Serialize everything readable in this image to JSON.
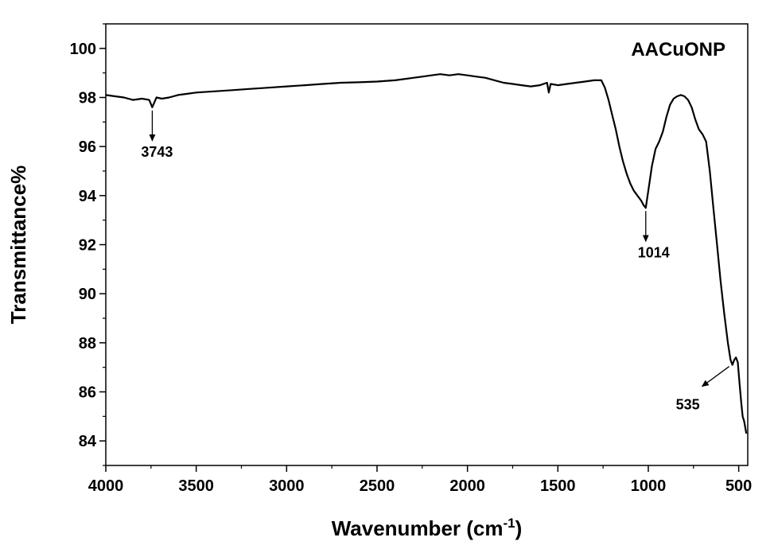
{
  "chart_data": {
    "type": "line",
    "title": "",
    "xlabel": "Wavenumber (cm",
    "xlabel_superscript": "-1",
    "xlabel_close": ")",
    "ylabel": "Transmittance%",
    "xlim": [
      4000,
      450
    ],
    "ylim": [
      83,
      101
    ],
    "x_reversed": true,
    "grid": false,
    "legend_position": "top-right",
    "x_ticks": [
      4000,
      3500,
      3000,
      2500,
      2000,
      1500,
      1000,
      500
    ],
    "y_ticks": [
      84,
      86,
      88,
      90,
      92,
      94,
      96,
      98,
      100
    ],
    "series": [
      {
        "name": "AACuONP",
        "color": "#000000",
        "x": [
          4000,
          3950,
          3900,
          3850,
          3800,
          3760,
          3743,
          3720,
          3690,
          3650,
          3600,
          3550,
          3500,
          3400,
          3300,
          3200,
          3100,
          3000,
          2900,
          2800,
          2700,
          2600,
          2500,
          2400,
          2300,
          2250,
          2200,
          2150,
          2100,
          2050,
          2000,
          1950,
          1900,
          1850,
          1800,
          1750,
          1700,
          1650,
          1600,
          1560,
          1550,
          1540,
          1500,
          1450,
          1400,
          1350,
          1300,
          1260,
          1240,
          1220,
          1200,
          1180,
          1160,
          1140,
          1120,
          1100,
          1080,
          1060,
          1040,
          1025,
          1014,
          1000,
          980,
          960,
          940,
          920,
          900,
          880,
          860,
          840,
          820,
          800,
          780,
          760,
          740,
          720,
          700,
          680,
          660,
          640,
          620,
          600,
          580,
          560,
          545,
          535,
          525,
          515,
          505,
          495,
          485,
          478,
          470,
          465,
          458
        ],
        "y": [
          98.1,
          98.05,
          98.0,
          97.9,
          97.95,
          97.9,
          97.6,
          98.0,
          97.95,
          98.0,
          98.1,
          98.15,
          98.2,
          98.25,
          98.3,
          98.35,
          98.4,
          98.45,
          98.5,
          98.55,
          98.6,
          98.62,
          98.65,
          98.7,
          98.8,
          98.85,
          98.9,
          98.95,
          98.9,
          98.95,
          98.9,
          98.85,
          98.8,
          98.7,
          98.6,
          98.55,
          98.5,
          98.45,
          98.5,
          98.6,
          98.2,
          98.55,
          98.5,
          98.55,
          98.6,
          98.65,
          98.7,
          98.7,
          98.4,
          97.9,
          97.3,
          96.7,
          96.0,
          95.4,
          94.9,
          94.5,
          94.2,
          94.0,
          93.8,
          93.6,
          93.5,
          94.2,
          95.2,
          95.9,
          96.2,
          96.6,
          97.2,
          97.7,
          97.95,
          98.05,
          98.1,
          98.05,
          97.9,
          97.6,
          97.1,
          96.7,
          96.5,
          96.2,
          95.0,
          93.5,
          92.0,
          90.5,
          89.2,
          88.0,
          87.3,
          87.1,
          87.3,
          87.4,
          87.2,
          86.3,
          85.5,
          85.0,
          84.8,
          84.6,
          84.3
        ]
      }
    ],
    "annotations": [
      {
        "label": "3743",
        "x": 3743,
        "y": 97.6
      },
      {
        "label": "1014",
        "x": 1014,
        "y": 93.5
      },
      {
        "label": "535",
        "x": 535,
        "y": 87.1
      }
    ]
  }
}
